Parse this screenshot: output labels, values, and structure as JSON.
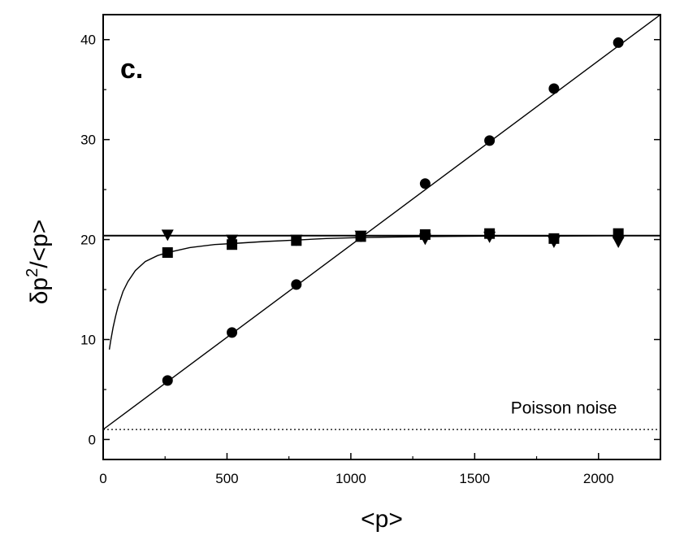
{
  "chart_data": {
    "type": "scatter",
    "panel_label": "c.",
    "xlabel": "<p>",
    "ylabel_parts": {
      "main": "δp",
      "superscript": "2",
      "tail": "/<p>"
    },
    "xlim": [
      0,
      2250
    ],
    "ylim": [
      -2,
      42.5
    ],
    "x_ticks": [
      0,
      500,
      1000,
      1500,
      2000
    ],
    "x_tick_labels": [
      "0",
      "500",
      "1000",
      "1500",
      "2000"
    ],
    "y_ticks": [
      0,
      10,
      20,
      30,
      40
    ],
    "y_tick_labels": [
      "0",
      "10",
      "20",
      "30",
      "40"
    ],
    "grid": false,
    "series": [
      {
        "marker": "circle",
        "x": [
          260,
          520,
          780,
          1040,
          1300,
          1560,
          1820,
          2080
        ],
        "y": [
          5.9,
          10.7,
          15.5,
          20.3,
          25.6,
          29.9,
          35.1,
          39.7
        ]
      },
      {
        "marker": "square",
        "x": [
          260,
          520,
          780,
          1040,
          1300,
          1560,
          1820,
          2080
        ],
        "y": [
          18.7,
          19.5,
          19.9,
          20.3,
          20.5,
          20.6,
          20.1,
          20.6
        ]
      },
      {
        "marker": "triangle-down",
        "x": [
          260,
          520,
          780,
          1040,
          1300,
          1560,
          1820,
          2080
        ],
        "y": [
          20.5,
          20.0,
          20.0,
          20.4,
          20.1,
          20.3,
          19.8,
          19.8
        ]
      }
    ],
    "lines": [
      {
        "kind": "linear-fit",
        "x": [
          0,
          2250
        ],
        "y": [
          1.0,
          42.5
        ]
      },
      {
        "kind": "constant",
        "x": [
          0,
          2250
        ],
        "y": [
          20.4,
          20.4
        ]
      },
      {
        "kind": "saturating-fit",
        "x": [
          25,
          30,
          40,
          50,
          60,
          80,
          100,
          130,
          170,
          220,
          260,
          350,
          450,
          520,
          650,
          780,
          900,
          1040,
          1300,
          1560,
          1820,
          2080,
          2250
        ],
        "y": [
          9.0,
          9.8,
          11.2,
          12.3,
          13.3,
          14.8,
          15.8,
          16.9,
          17.8,
          18.4,
          18.7,
          19.2,
          19.5,
          19.6,
          19.8,
          19.95,
          20.1,
          20.2,
          20.3,
          20.35,
          20.35,
          20.4,
          20.4
        ]
      },
      {
        "kind": "poisson-noise",
        "style": "dotted",
        "x": [
          0,
          2250
        ],
        "y": [
          1.0,
          1.0
        ]
      }
    ],
    "annotations": [
      {
        "text": "Poisson noise",
        "x": 1860,
        "y": 2.6
      }
    ]
  }
}
